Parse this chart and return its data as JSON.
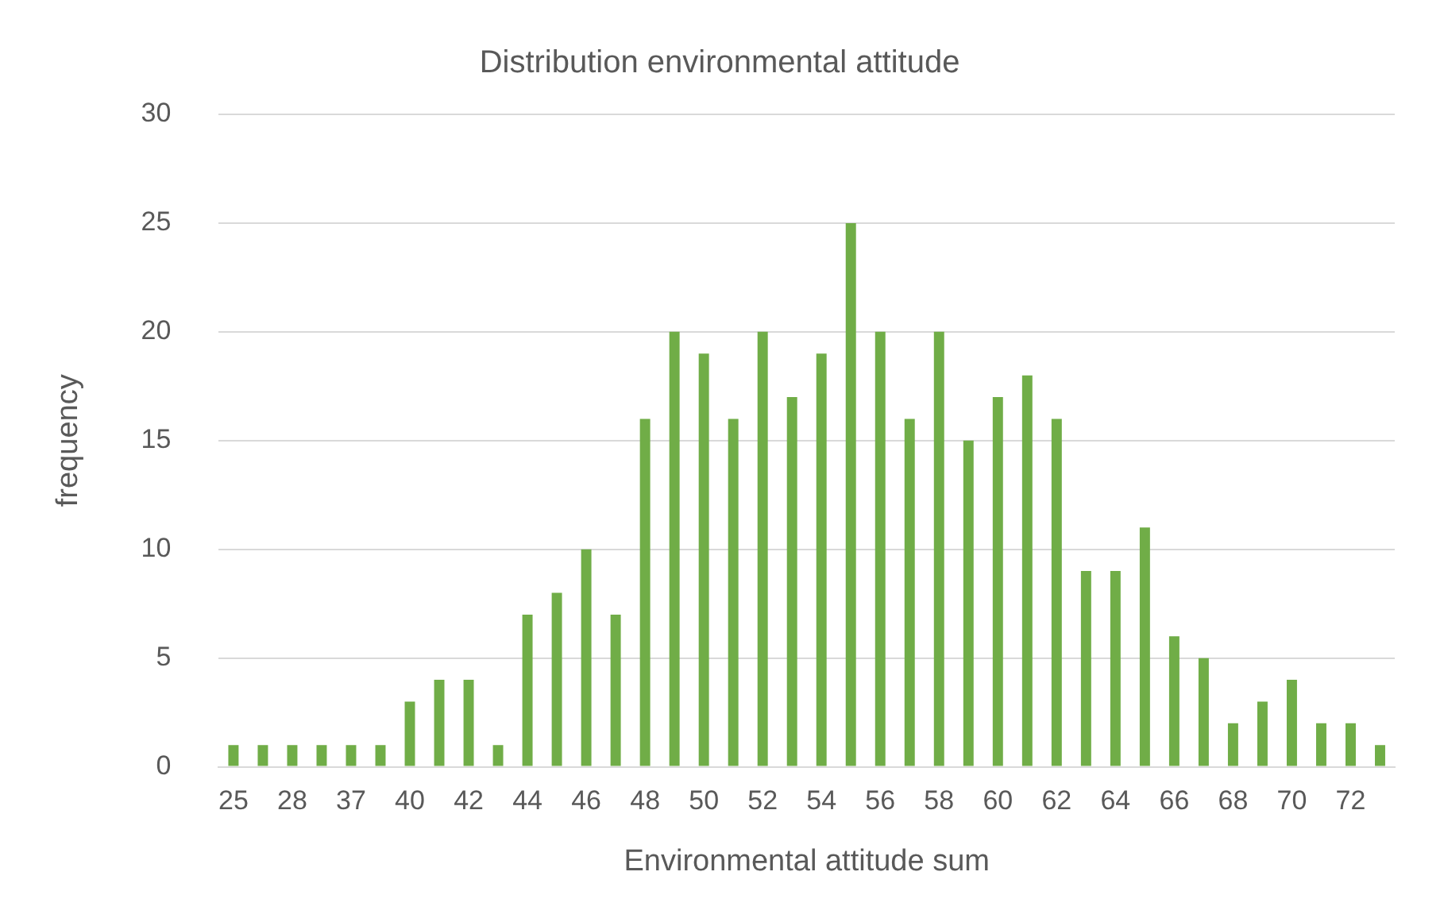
{
  "chart_data": {
    "type": "bar",
    "title": "Distribution environmental attitude",
    "xlabel": "Environmental attitude sum",
    "ylabel": "frequency",
    "categories": [
      "25",
      null,
      "28",
      null,
      "37",
      null,
      "40",
      null,
      "42",
      null,
      "44",
      null,
      "46",
      null,
      "48",
      null,
      "50",
      null,
      "52",
      null,
      "54",
      null,
      "56",
      null,
      "58",
      null,
      "60",
      null,
      "62",
      null,
      "64",
      null,
      "66",
      null,
      "68",
      null,
      "70",
      null,
      "72",
      null
    ],
    "values": [
      1,
      1,
      1,
      1,
      1,
      1,
      3,
      4,
      4,
      1,
      7,
      8,
      10,
      7,
      16,
      20,
      19,
      16,
      20,
      17,
      19,
      25,
      20,
      16,
      20,
      15,
      17,
      18,
      16,
      9,
      9,
      11,
      6,
      5,
      2,
      3,
      4,
      2,
      2,
      1
    ],
    "color": "#70ad47",
    "ylim": [
      0,
      30
    ],
    "yticks": [
      0,
      5,
      10,
      15,
      20,
      25,
      30
    ],
    "grid": "y",
    "legend": false
  }
}
